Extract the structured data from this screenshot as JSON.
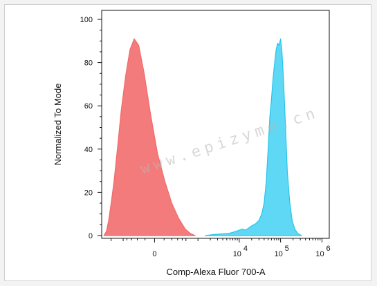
{
  "chart_data": {
    "type": "area",
    "xlabel": "Comp-Alexa Fluor 700-A",
    "ylabel": "Normalized To Mode",
    "ylim": [
      0,
      100
    ],
    "x_scale": "biexponential",
    "y_ticks": [
      0,
      20,
      40,
      60,
      80,
      100
    ],
    "y_tick_labels": [
      "0",
      "20",
      "40",
      "60",
      "80",
      "100"
    ],
    "x_ticks": [
      0,
      10000,
      100000,
      1000000
    ],
    "x_tick_labels": [
      {
        "base": "0",
        "exp": ""
      },
      {
        "base": "10",
        "exp": "4"
      },
      {
        "base": "10",
        "exp": "5"
      },
      {
        "base": "10",
        "exp": "6"
      }
    ],
    "grid": false,
    "watermark": "www.epizyme.cn",
    "series": [
      {
        "color": "#f06a6a",
        "fill": "#f47b7b",
        "points": [
          [
            -1500,
            0
          ],
          [
            -1300,
            2
          ],
          [
            -1150,
            7
          ],
          [
            -1000,
            15
          ],
          [
            -850,
            25
          ],
          [
            -700,
            40
          ],
          [
            -560,
            58
          ],
          [
            -430,
            74
          ],
          [
            -330,
            86
          ],
          [
            -250,
            91
          ],
          [
            -180,
            88
          ],
          [
            -110,
            75
          ],
          [
            -40,
            56
          ],
          [
            30,
            38
          ],
          [
            110,
            25
          ],
          [
            200,
            15
          ],
          [
            320,
            8
          ],
          [
            480,
            3
          ],
          [
            650,
            1
          ],
          [
            850,
            0
          ]
        ]
      },
      {
        "color": "#29c4ea",
        "fill": "#5fd8f5",
        "points": [
          [
            1500,
            0
          ],
          [
            2500,
            0.5
          ],
          [
            4000,
            0.8
          ],
          [
            5500,
            1
          ],
          [
            7000,
            1.5
          ],
          [
            8500,
            2
          ],
          [
            10000,
            2.5
          ],
          [
            12000,
            3
          ],
          [
            14000,
            2.5
          ],
          [
            17000,
            3.5
          ],
          [
            20000,
            4.5
          ],
          [
            25000,
            5.5
          ],
          [
            30000,
            7
          ],
          [
            35000,
            10
          ],
          [
            40000,
            15
          ],
          [
            45000,
            25
          ],
          [
            50000,
            40
          ],
          [
            55000,
            55
          ],
          [
            60000,
            63
          ],
          [
            66000,
            73
          ],
          [
            72000,
            80
          ],
          [
            78000,
            86
          ],
          [
            85000,
            89
          ],
          [
            92000,
            88
          ],
          [
            100000,
            91
          ],
          [
            108000,
            85
          ],
          [
            118000,
            72
          ],
          [
            130000,
            52
          ],
          [
            145000,
            30
          ],
          [
            165000,
            16
          ],
          [
            190000,
            7
          ],
          [
            220000,
            3
          ],
          [
            260000,
            1
          ],
          [
            320000,
            0
          ]
        ]
      }
    ]
  }
}
